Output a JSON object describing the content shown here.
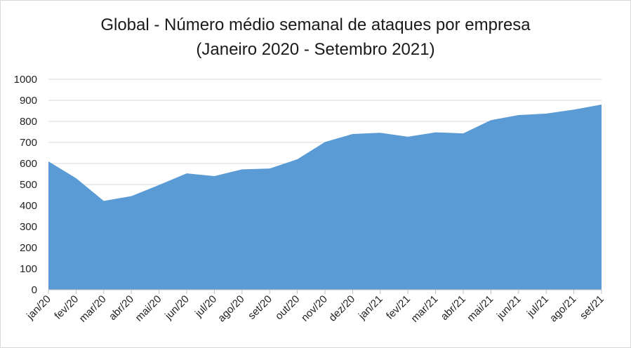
{
  "chart_data": {
    "type": "area",
    "title": "Global - Número médio semanal de ataques por empresa",
    "subtitle": "(Janeiro 2020 - Setembro 2021)",
    "categories": [
      "jan/20",
      "fev/20",
      "mar/20",
      "abr/20",
      "mai/20",
      "jun/20",
      "jul/20",
      "ago/20",
      "set/20",
      "out/20",
      "nov/20",
      "dez/20",
      "jan/21",
      "fev/21",
      "mar/21",
      "abr/21",
      "mai/21",
      "jun/21",
      "jul/21",
      "ago/21",
      "set/21"
    ],
    "series": [
      {
        "values": [
          610,
          530,
          422,
          445,
          498,
          553,
          540,
          572,
          576,
          620,
          702,
          740,
          746,
          727,
          748,
          743,
          806,
          830,
          837,
          856,
          880
        ]
      }
    ],
    "ylim": [
      0,
      1000
    ],
    "yticks": [
      0,
      100,
      200,
      300,
      400,
      500,
      600,
      700,
      800,
      900,
      1000
    ],
    "grid": true,
    "legend": "none",
    "colors": {
      "area": "#5b9bd5",
      "grid": "#d9d9d9",
      "axis": "#bfbfbf"
    }
  }
}
